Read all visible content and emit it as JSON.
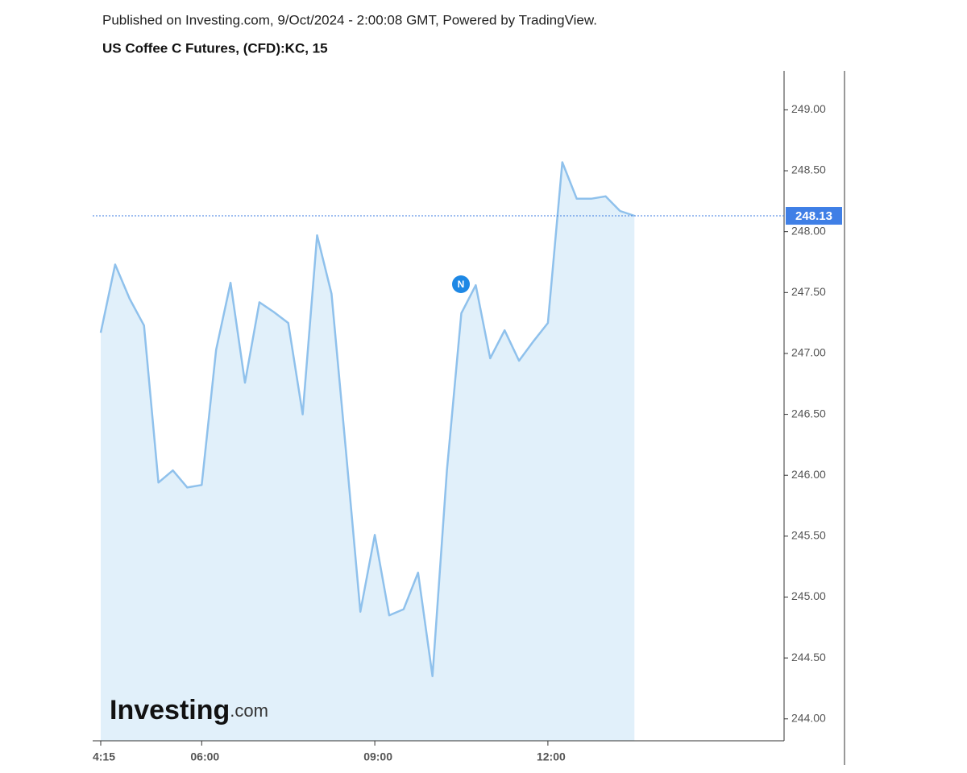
{
  "header": "Published on Investing.com, 9/Oct/2024 - 2:00:08 GMT, Powered by TradingView.",
  "chart_data": {
    "type": "area",
    "title": "US Coffee C Futures, (CFD):KC, 15",
    "categories": [
      "4:15",
      null,
      null,
      null,
      null,
      null,
      null,
      "06:00",
      null,
      null,
      null,
      null,
      null,
      null,
      null,
      null,
      null,
      null,
      null,
      "09:00",
      null,
      null,
      null,
      null,
      null,
      null,
      null,
      null,
      null,
      null,
      null,
      "12:00",
      null,
      null,
      null,
      null,
      null,
      null
    ],
    "values": [
      247.17,
      247.73,
      247.45,
      247.23,
      245.94,
      246.04,
      245.9,
      245.92,
      247.03,
      247.58,
      246.76,
      247.42,
      247.34,
      247.25,
      246.5,
      247.97,
      247.49,
      246.2,
      244.88,
      245.51,
      244.85,
      244.9,
      245.2,
      244.35,
      246.04,
      247.33,
      247.56,
      246.96,
      247.19,
      246.94,
      247.1,
      247.25,
      248.57,
      248.27,
      248.27,
      248.29,
      248.17,
      248.13
    ],
    "color": "#8fc1ec",
    "fill": "#e1f0fa",
    "ylim": [
      243.82,
      249.32
    ],
    "yticks": [
      {
        "value": 244,
        "label": "244.00"
      },
      {
        "value": 244.5,
        "label": "244.50"
      },
      {
        "value": 245,
        "label": "245.00"
      },
      {
        "value": 245.5,
        "label": "245.50"
      },
      {
        "value": 246,
        "label": "246.00"
      },
      {
        "value": 246.5,
        "label": "246.50"
      },
      {
        "value": 247,
        "label": "247.00"
      },
      {
        "value": 247.5,
        "label": "247.50"
      },
      {
        "value": 248,
        "label": "248.00"
      },
      {
        "value": 248.5,
        "label": "248.50"
      },
      {
        "value": 249,
        "label": "249.00"
      }
    ],
    "last_price": {
      "value": 248.13,
      "label": "248.13"
    },
    "annotation": "N",
    "logo": {
      "brand": "Investing",
      "suffix": ".com"
    }
  }
}
